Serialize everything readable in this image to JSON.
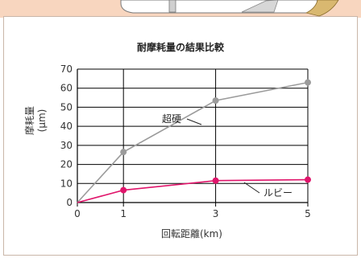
{
  "colors": {
    "background": "#ffffff",
    "top_strip": "#f8d6bf",
    "grid": "#000000",
    "series_cemented_carbide": "#9b9b9b",
    "series_ruby": "#e0156b"
  },
  "chart_data": {
    "type": "line",
    "title": "耐摩耗量の結果比較",
    "xlabel": "回転距離(km)",
    "ylabel": "摩耗量(μm)",
    "x": [
      0,
      1,
      3,
      5
    ],
    "xticks": [
      "0",
      "1",
      "3",
      "5"
    ],
    "yticks": [
      "0",
      "10",
      "20",
      "30",
      "40",
      "50",
      "60",
      "70"
    ],
    "xlim": [
      0,
      5
    ],
    "ylim": [
      0,
      70
    ],
    "grid": true,
    "series": [
      {
        "name": "超硬",
        "values": [
          0,
          26.5,
          53.5,
          63
        ],
        "color": "#9b9b9b"
      },
      {
        "name": "ルビー",
        "values": [
          0,
          6.5,
          11.5,
          12
        ],
        "color": "#e0156b"
      }
    ]
  }
}
